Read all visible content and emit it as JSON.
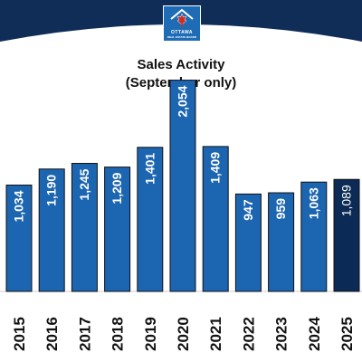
{
  "logo": {
    "name": "OTTAWA",
    "subtitle": "REAL ESTATE BOARD",
    "icon": "house-maple-leaf-icon"
  },
  "colors": {
    "header": "#0f2d57",
    "bar": "#1c65b0",
    "highlight_bar": "#0b2a55",
    "bar_text": "#ffffff",
    "logo_bg": "#1f6cb6"
  },
  "chart_data": {
    "type": "bar",
    "title_line1": "Sales Activity",
    "title_line2": "(September only)",
    "categories": [
      "2015",
      "2016",
      "2017",
      "2018",
      "2019",
      "2020",
      "2021",
      "2022",
      "2023",
      "2024",
      "2025"
    ],
    "values": [
      1034,
      1190,
      1245,
      1209,
      1401,
      2054,
      1409,
      947,
      959,
      1063,
      1089
    ],
    "labels": [
      "1,034",
      "1,190",
      "1,245",
      "1,209",
      "1,401",
      "2,054",
      "1,409",
      "947",
      "959",
      "1,063",
      "1,089"
    ],
    "highlight_index": 10,
    "ylim": [
      0,
      2200
    ],
    "grid": false,
    "legend": "none"
  }
}
